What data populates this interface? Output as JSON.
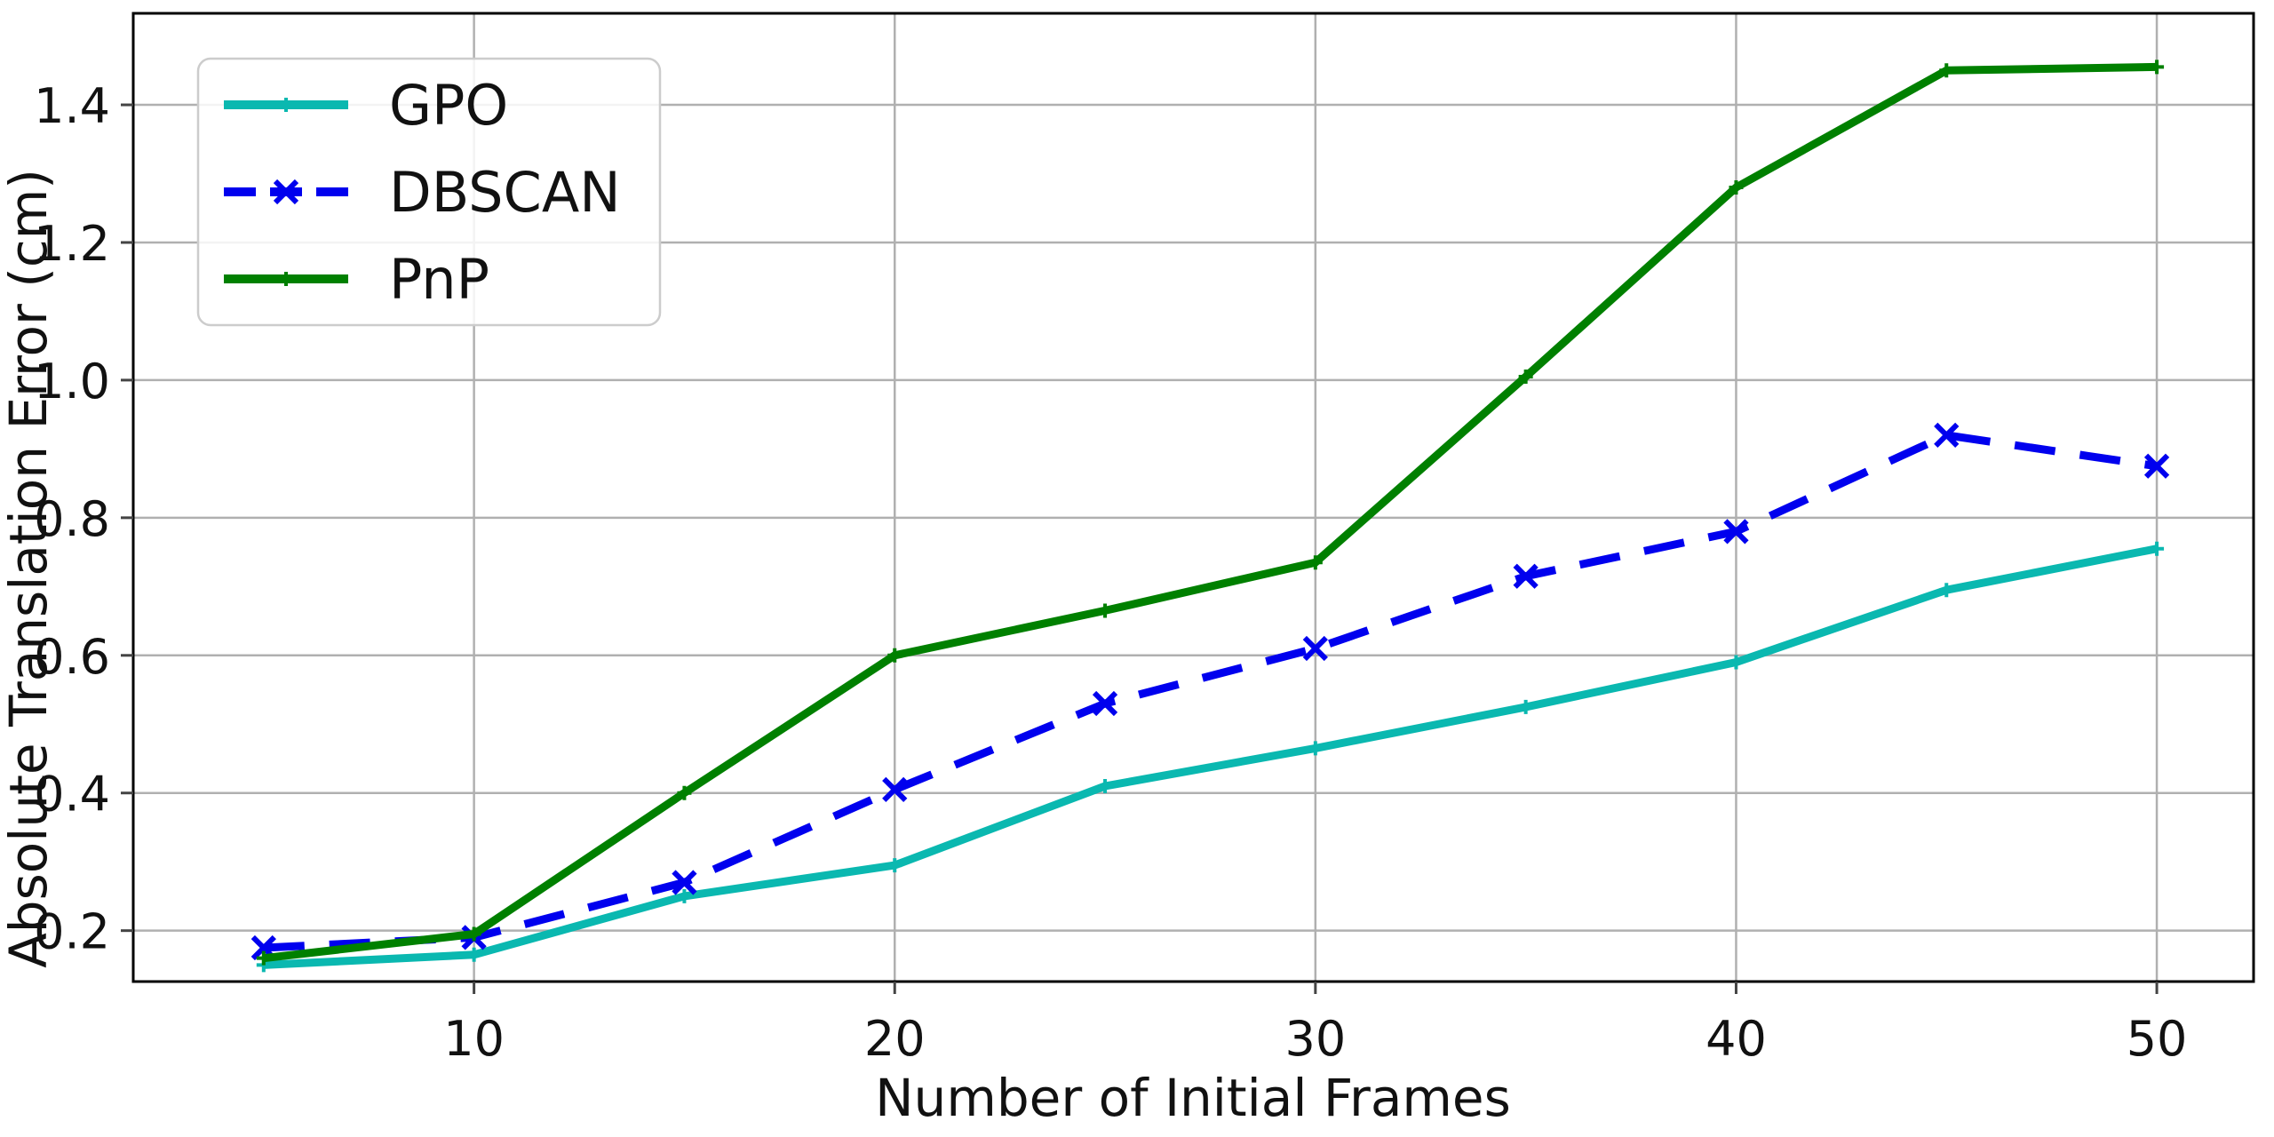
{
  "figure": {
    "background": "#ffffff"
  },
  "chart_data": {
    "type": "line",
    "title": "",
    "xlabel": "Number of Initial Frames",
    "ylabel": "Absolute Translation Error (cm)",
    "x": [
      5,
      10,
      15,
      20,
      25,
      30,
      35,
      40,
      45,
      50
    ],
    "series": [
      {
        "name": "GPO",
        "color": "#0ab8b0",
        "linestyle": "solid",
        "marker": "plus",
        "values": [
          0.15,
          0.165,
          0.25,
          0.295,
          0.41,
          0.465,
          0.525,
          0.59,
          0.695,
          0.755
        ]
      },
      {
        "name": "DBSCAN",
        "color": "#0000ee",
        "linestyle": "dashed",
        "marker": "x",
        "values": [
          0.175,
          0.19,
          0.27,
          0.405,
          0.53,
          0.61,
          0.715,
          0.78,
          0.92,
          0.875
        ]
      },
      {
        "name": "PnP",
        "color": "#008000",
        "linestyle": "solid",
        "marker": "plus",
        "values": [
          0.16,
          0.195,
          0.4,
          0.6,
          0.665,
          0.735,
          1.005,
          1.28,
          1.45,
          1.455
        ]
      }
    ],
    "xticks": [
      10,
      20,
      30,
      40,
      50
    ],
    "yticks": [
      0.2,
      0.4,
      0.6,
      0.8,
      1.0,
      1.2,
      1.4
    ],
    "xlim": [
      1.9,
      52.3
    ],
    "ylim": [
      0.126,
      1.533
    ],
    "grid": true,
    "legend_position": "upper left"
  },
  "style_colors": {
    "grid": "#b0b0b0",
    "spine": "#000000",
    "tick": "#444444",
    "legend_border": "#cccccc",
    "legend_fill": "#ffffff"
  }
}
